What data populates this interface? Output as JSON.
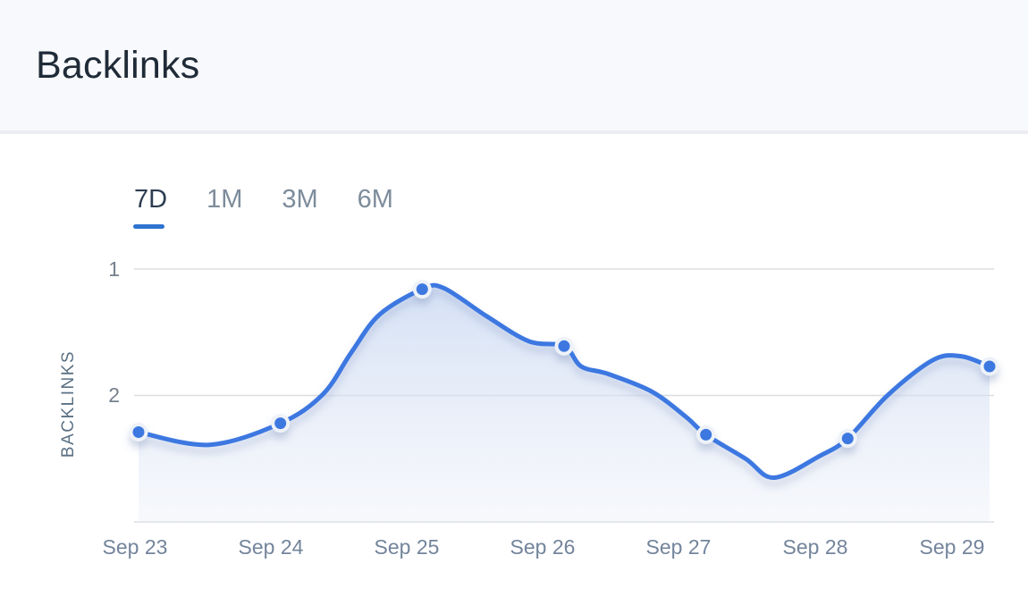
{
  "header": {
    "title": "Backlinks"
  },
  "tabs": {
    "items": [
      {
        "label": "7D",
        "active": true
      },
      {
        "label": "1M",
        "active": false
      },
      {
        "label": "3M",
        "active": false
      },
      {
        "label": "6M",
        "active": false
      }
    ]
  },
  "chart_data": {
    "type": "line",
    "title": "Backlinks",
    "xlabel": "",
    "ylabel": "BACKLINKS",
    "categories": [
      "Sep 23",
      "Sep 24",
      "Sep 25",
      "Sep 26",
      "Sep 27",
      "Sep 28",
      "Sep 29"
    ],
    "series": [
      {
        "name": "Backlinks",
        "values": [
          2.29,
          2.22,
          1.16,
          1.61,
          2.31,
          2.34,
          1.77
        ]
      }
    ],
    "y_ticks": [
      1,
      2
    ],
    "ylim": [
      1,
      3
    ],
    "y_axis_direction": "values increase downward (tick 1 above tick 2)",
    "grid": true,
    "legend": "none",
    "markers": "circle",
    "area_fill": true,
    "curve": "smooth",
    "curve_samples": [
      [
        0,
        2.29
      ],
      [
        0.5,
        2.39
      ],
      [
        1,
        2.22
      ],
      [
        1.3,
        1.99
      ],
      [
        1.5,
        1.66
      ],
      [
        1.7,
        1.36
      ],
      [
        2,
        1.16
      ],
      [
        2.15,
        1.15
      ],
      [
        2.45,
        1.37
      ],
      [
        2.75,
        1.57
      ],
      [
        3,
        1.61
      ],
      [
        3.12,
        1.77
      ],
      [
        3.31,
        1.83
      ],
      [
        3.62,
        1.97
      ],
      [
        3.86,
        2.17
      ],
      [
        4,
        2.31
      ],
      [
        4.28,
        2.5
      ],
      [
        4.48,
        2.65
      ],
      [
        4.8,
        2.48
      ],
      [
        5,
        2.34
      ],
      [
        5.28,
        2.0
      ],
      [
        5.6,
        1.72
      ],
      [
        5.8,
        1.69
      ],
      [
        6,
        1.77
      ]
    ]
  },
  "colors": {
    "accent_blue": "#3c78e1",
    "tab_underline": "#2f74d0",
    "active_tab_text": "#2c3d52",
    "inactive_tab_text": "#7d8c9b",
    "title_text": "#202b38",
    "header_bg": "#f8f9fc",
    "grid": "#dcdde1",
    "axis_text": "#76808d",
    "x_label_text": "#73849b",
    "y_title_text": "#5b7184",
    "area_top": "#c9d8f2",
    "area_bottom": "#e7ecf6",
    "dot_ring": "#eef2f8"
  }
}
